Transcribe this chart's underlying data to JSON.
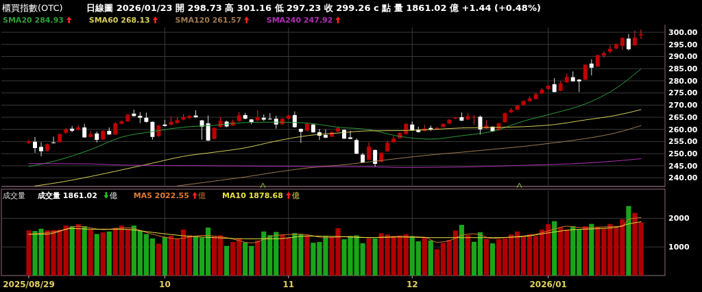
{
  "chart_data": [
    {
      "type": "candlestick",
      "title": "櫃買指數(OTC)",
      "subtitle": "日線圖 2026/01/23 開 298.73 高 301.16 低 297.23 收 299.26 c 點 量 1861.02 億 +1.44 (+0.48%)",
      "categories": [
        "2025/08/29",
        null,
        null,
        null,
        null,
        null,
        null,
        null,
        null,
        null,
        null,
        null,
        null,
        null,
        null,
        null,
        null,
        null,
        null,
        null,
        null,
        null,
        "10",
        null,
        null,
        null,
        null,
        null,
        null,
        null,
        null,
        null,
        null,
        null,
        null,
        null,
        null,
        null,
        null,
        null,
        null,
        null,
        "11",
        null,
        null,
        null,
        null,
        null,
        null,
        null,
        null,
        null,
        null,
        null,
        null,
        null,
        null,
        null,
        null,
        null,
        null,
        null,
        "12",
        null,
        null,
        null,
        null,
        null,
        null,
        null,
        null,
        null,
        null,
        null,
        null,
        null,
        null,
        null,
        null,
        null,
        null,
        null,
        null,
        null,
        "2026/01",
        null,
        null,
        null,
        null,
        null,
        null,
        null,
        null,
        null,
        null,
        null,
        null,
        null,
        null,
        null
      ],
      "ohlc": [
        [
          254.4,
          255.8,
          254.0,
          255.1
        ],
        [
          254.9,
          256.9,
          250.3,
          252.3
        ],
        [
          252.8,
          254.7,
          248.9,
          251.0
        ],
        [
          251.2,
          254.2,
          250.9,
          253.9
        ],
        [
          254.6,
          257.0,
          254.2,
          254.4
        ],
        [
          254.7,
          258.3,
          254.5,
          258.1
        ],
        [
          258.6,
          260.5,
          258.3,
          260.0
        ],
        [
          260.3,
          261.4,
          258.8,
          259.4
        ],
        [
          259.8,
          261.8,
          259.5,
          260.9
        ],
        [
          260.8,
          262.3,
          256.5,
          256.7
        ],
        [
          256.9,
          259.3,
          256.7,
          258.1
        ],
        [
          258.3,
          259.1,
          254.6,
          255.7
        ],
        [
          255.9,
          259.6,
          255.6,
          259.4
        ],
        [
          259.4,
          260.8,
          257.7,
          257.9
        ],
        [
          257.9,
          262.9,
          257.7,
          262.5
        ],
        [
          262.3,
          263.8,
          262.1,
          263.3
        ],
        [
          263.3,
          266.3,
          263.1,
          266.1
        ],
        [
          266.5,
          268.1,
          265.3,
          265.5
        ],
        [
          265.6,
          267.1,
          262.6,
          264.8
        ],
        [
          264.8,
          266.9,
          262.8,
          263.1
        ],
        [
          263.1,
          263.3,
          255.8,
          256.9
        ],
        [
          257.2,
          261.8,
          257.0,
          261.6
        ],
        [
          262.0,
          263.9,
          261.2,
          261.4
        ],
        [
          261.9,
          265.3,
          261.7,
          263.1
        ],
        [
          262.6,
          265.0,
          262.4,
          263.8
        ],
        [
          264.0,
          266.3,
          263.8,
          265.1
        ],
        [
          264.6,
          265.8,
          264.4,
          265.6
        ],
        [
          265.7,
          267.9,
          264.8,
          265.0
        ],
        [
          263.7,
          263.9,
          255.8,
          261.1
        ],
        [
          262.5,
          265.7,
          255.2,
          255.4
        ],
        [
          256.1,
          260.8,
          255.9,
          260.6
        ],
        [
          261.0,
          265.0,
          260.8,
          263.6
        ],
        [
          263.2,
          263.6,
          260.9,
          261.2
        ],
        [
          261.6,
          264.0,
          261.4,
          263.2
        ],
        [
          263.4,
          267.1,
          263.2,
          265.8
        ],
        [
          265.9,
          266.8,
          264.2,
          264.4
        ],
        [
          264.1,
          264.3,
          262.1,
          263.0
        ],
        [
          263.7,
          267.8,
          263.5,
          265.0
        ],
        [
          264.8,
          266.2,
          263.4,
          264.0
        ],
        [
          264.4,
          266.7,
          264.0,
          264.2
        ],
        [
          264.4,
          265.6,
          260.3,
          262.0
        ],
        [
          262.1,
          264.6,
          261.9,
          264.4
        ],
        [
          264.4,
          265.9,
          264.2,
          265.7
        ],
        [
          265.9,
          267.4,
          260.7,
          260.9
        ],
        [
          260.2,
          260.4,
          254.4,
          259.0
        ],
        [
          259.5,
          262.5,
          259.3,
          262.3
        ],
        [
          262.0,
          262.2,
          258.6,
          258.8
        ],
        [
          258.8,
          260.2,
          255.6,
          257.4
        ],
        [
          257.7,
          260.0,
          256.4,
          256.6
        ],
        [
          257.0,
          259.2,
          256.8,
          258.8
        ],
        [
          259.1,
          260.9,
          258.9,
          260.5
        ],
        [
          259.8,
          260.0,
          256.0,
          256.2
        ],
        [
          256.7,
          259.5,
          255.9,
          256.1
        ],
        [
          255.6,
          256.3,
          249.8,
          250.0
        ],
        [
          249.6,
          250.3,
          246.2,
          246.4
        ],
        [
          247.5,
          254.7,
          247.3,
          253.0
        ],
        [
          251.5,
          251.7,
          244.7,
          245.8
        ],
        [
          246.6,
          250.5,
          246.4,
          250.3
        ],
        [
          251.0,
          255.4,
          250.8,
          254.5
        ],
        [
          254.7,
          257.1,
          254.5,
          256.2
        ],
        [
          256.4,
          258.9,
          256.2,
          258.5
        ],
        [
          258.1,
          262.5,
          257.9,
          262.3
        ],
        [
          262.0,
          263.3,
          259.4,
          259.6
        ],
        [
          259.9,
          261.1,
          258.7,
          258.9
        ],
        [
          259.4,
          261.9,
          259.2,
          260.4
        ],
        [
          260.6,
          261.6,
          259.4,
          260.0
        ],
        [
          260.0,
          261.1,
          259.8,
          260.6
        ],
        [
          261.0,
          262.5,
          260.8,
          262.3
        ],
        [
          262.4,
          264.2,
          262.2,
          264.0
        ],
        [
          264.4,
          265.1,
          264.2,
          264.9
        ],
        [
          265.0,
          267.0,
          263.4,
          263.6
        ],
        [
          264.1,
          266.6,
          263.9,
          265.4
        ],
        [
          264.9,
          265.9,
          261.8,
          265.2
        ],
        [
          265.2,
          265.7,
          257.8,
          260.0
        ],
        [
          260.4,
          263.8,
          260.2,
          261.6
        ],
        [
          261.1,
          261.3,
          259.0,
          259.2
        ],
        [
          259.7,
          262.7,
          259.5,
          262.5
        ],
        [
          263.0,
          266.9,
          262.8,
          266.7
        ],
        [
          267.0,
          268.8,
          266.8,
          268.0
        ],
        [
          268.1,
          270.0,
          267.9,
          269.8
        ],
        [
          270.0,
          271.9,
          269.8,
          271.7
        ],
        [
          271.6,
          273.6,
          271.4,
          272.8
        ],
        [
          272.5,
          274.9,
          272.3,
          274.5
        ],
        [
          274.7,
          277.0,
          274.5,
          276.4
        ],
        [
          276.6,
          278.2,
          276.4,
          278.0
        ],
        [
          278.6,
          281.1,
          275.2,
          275.4
        ],
        [
          275.9,
          279.9,
          275.7,
          278.9
        ],
        [
          279.4,
          283.0,
          279.2,
          281.6
        ],
        [
          281.5,
          283.9,
          279.6,
          279.8
        ],
        [
          280.5,
          280.7,
          275.4,
          279.8
        ],
        [
          280.5,
          286.8,
          280.3,
          286.6
        ],
        [
          287.1,
          288.9,
          282.2,
          285.4
        ],
        [
          285.9,
          290.8,
          285.7,
          290.6
        ],
        [
          290.4,
          292.1,
          289.5,
          291.4
        ],
        [
          292.0,
          294.8,
          291.4,
          293.2
        ],
        [
          293.3,
          295.3,
          293.1,
          295.1
        ],
        [
          294.4,
          297.9,
          292.8,
          297.7
        ],
        [
          297.4,
          299.3,
          292.5,
          293.0
        ],
        [
          294.6,
          300.8,
          294.4,
          297.82
        ],
        [
          298.73,
          301.16,
          297.23,
          299.26
        ]
      ],
      "series": [
        {
          "type": "line",
          "name": "SMA20 284.93",
          "color": "#2f9c3a",
          "values": [
            244.7,
            null,
            null,
            null,
            null,
            247.5,
            null,
            null,
            null,
            null,
            251.7,
            null,
            null,
            null,
            null,
            256.8,
            null,
            null,
            null,
            null,
            259.1,
            null,
            null,
            null,
            null,
            260.9,
            null,
            null,
            null,
            null,
            261.7,
            null,
            null,
            null,
            null,
            262.8,
            null,
            null,
            null,
            null,
            263.0,
            null,
            null,
            null,
            null,
            262.6,
            null,
            null,
            null,
            null,
            260.9,
            null,
            null,
            null,
            null,
            259.9,
            null,
            null,
            null,
            null,
            257.1,
            null,
            null,
            null,
            null,
            256.0,
            null,
            null,
            null,
            null,
            257.4,
            null,
            null,
            null,
            null,
            259.2,
            null,
            null,
            null,
            null,
            263.4,
            null,
            null,
            null,
            null,
            266.7,
            null,
            null,
            null,
            null,
            270.5,
            null,
            null,
            null,
            null,
            277.0,
            null,
            null,
            null,
            284.93
          ]
        },
        {
          "type": "line",
          "name": "SMA60 268.13",
          "color": "#d8cf5a",
          "values": [
            null,
            236.7,
            null,
            null,
            null,
            238.2,
            null,
            null,
            null,
            null,
            240.6,
            null,
            null,
            null,
            null,
            243.3,
            null,
            null,
            null,
            null,
            246.1,
            null,
            null,
            null,
            null,
            248.9,
            null,
            null,
            null,
            null,
            250.6,
            null,
            null,
            null,
            null,
            252.4,
            null,
            null,
            null,
            null,
            255.2,
            null,
            null,
            null,
            null,
            257.4,
            null,
            null,
            null,
            null,
            258.5,
            null,
            null,
            null,
            null,
            259.4,
            null,
            null,
            null,
            null,
            259.5,
            null,
            null,
            null,
            null,
            259.9,
            null,
            null,
            null,
            null,
            260.6,
            null,
            null,
            null,
            null,
            260.8,
            null,
            null,
            null,
            null,
            261.1,
            null,
            null,
            null,
            null,
            262.0,
            null,
            null,
            null,
            null,
            263.9,
            null,
            null,
            null,
            null,
            265.8,
            null,
            null,
            null,
            268.13
          ]
        },
        {
          "type": "line",
          "name": "SMA120 261.57",
          "color": "#a07a52",
          "values": [
            null,
            null,
            null,
            null,
            null,
            null,
            null,
            null,
            null,
            null,
            null,
            null,
            null,
            null,
            null,
            null,
            null,
            null,
            null,
            null,
            null,
            null,
            null,
            null,
            236.7,
            null,
            null,
            null,
            null,
            null,
            238.7,
            null,
            null,
            null,
            null,
            240.4,
            null,
            null,
            null,
            null,
            242.4,
            null,
            null,
            null,
            null,
            244.1,
            null,
            null,
            null,
            null,
            245.2,
            null,
            null,
            null,
            null,
            246.6,
            null,
            null,
            null,
            null,
            248.1,
            null,
            null,
            null,
            null,
            249.5,
            null,
            null,
            null,
            null,
            250.6,
            null,
            null,
            null,
            null,
            251.8,
            null,
            null,
            null,
            null,
            253.0,
            null,
            null,
            null,
            null,
            254.5,
            null,
            null,
            null,
            null,
            256.2,
            null,
            null,
            null,
            null,
            258.6,
            null,
            null,
            null,
            261.57
          ]
        },
        {
          "type": "line",
          "name": "SMA240 247.92",
          "color": "#b02fb5",
          "values": [
            245.9,
            null,
            null,
            null,
            null,
            null,
            null,
            null,
            null,
            null,
            245.8,
            null,
            null,
            null,
            null,
            245.3,
            null,
            null,
            null,
            null,
            null,
            null,
            null,
            null,
            null,
            null,
            null,
            null,
            null,
            null,
            245.0,
            null,
            null,
            null,
            null,
            null,
            null,
            null,
            null,
            null,
            null,
            null,
            null,
            null,
            null,
            244.7,
            null,
            null,
            null,
            null,
            null,
            null,
            null,
            null,
            null,
            244.6,
            null,
            null,
            null,
            null,
            244.3,
            null,
            null,
            null,
            null,
            null,
            null,
            null,
            null,
            null,
            244.5,
            null,
            null,
            null,
            null,
            null,
            null,
            null,
            null,
            null,
            245.2,
            null,
            null,
            null,
            null,
            245.6,
            null,
            null,
            null,
            null,
            246.1,
            null,
            null,
            null,
            null,
            247.0,
            null,
            null,
            null,
            247.92
          ]
        }
      ],
      "ylim": [
        236.5,
        302
      ],
      "yticks": [
        {
          "value": 240,
          "label": "240.00"
        },
        {
          "value": 245,
          "label": "245.00"
        },
        {
          "value": 250,
          "label": "250.00"
        },
        {
          "value": 255,
          "label": "255.00"
        },
        {
          "value": 260,
          "label": "260.00"
        },
        {
          "value": 265,
          "label": "265.00"
        },
        {
          "value": 270,
          "label": "270.00"
        },
        {
          "value": 275,
          "label": "275.00"
        },
        {
          "value": 280,
          "label": "280.00"
        },
        {
          "value": 285,
          "label": "285.00"
        },
        {
          "value": 290,
          "label": "290.00"
        },
        {
          "value": 295,
          "label": "295.00"
        },
        {
          "value": 300,
          "label": "300.00"
        }
      ],
      "grid": true,
      "legend": "top left",
      "tick_labels": "y"
    },
    {
      "type": "bar",
      "title": "成交量",
      "categories": [
        "2025/08/29",
        null,
        null,
        null,
        null,
        null,
        null,
        null,
        null,
        null,
        null,
        null,
        null,
        null,
        null,
        null,
        null,
        null,
        null,
        null,
        null,
        null,
        "10",
        null,
        null,
        null,
        null,
        null,
        null,
        null,
        null,
        null,
        null,
        null,
        null,
        null,
        null,
        null,
        null,
        null,
        null,
        null,
        "11",
        null,
        null,
        null,
        null,
        null,
        null,
        null,
        null,
        null,
        null,
        null,
        null,
        null,
        null,
        null,
        null,
        null,
        null,
        null,
        "12",
        null,
        null,
        null,
        null,
        null,
        null,
        null,
        null,
        null,
        null,
        null,
        null,
        null,
        null,
        null,
        null,
        null,
        null,
        null,
        null,
        null,
        "2026/01",
        null,
        null,
        null,
        null,
        null,
        null,
        null,
        null,
        null,
        null,
        null,
        null,
        null,
        null,
        null
      ],
      "series": [
        {
          "type": "bar",
          "name": "成交量 1861.02 億",
          "values": [
            1580,
            1556,
            1636,
            1580,
            1588,
            1604,
            1748,
            1724,
            1796,
            1724,
            1604,
            1452,
            1508,
            1540,
            1668,
            1748,
            1620,
            1748,
            1556,
            1452,
            1300,
            1116,
            1348,
            1388,
            1284,
            1604,
            1404,
            1348,
            1324,
            1676,
            1364,
            1404,
            1036,
            1172,
            1300,
            1156,
            1036,
            1220,
            1540,
            1412,
            1524,
            1428,
            1324,
            1484,
            1444,
            1404,
            1148,
            1172,
            1364,
            1348,
            1652,
            1268,
            1380,
            1404,
            1130,
            1300,
            1300,
            1476,
            1436,
            1380,
            1404,
            1444,
            1380,
            1196,
            1340,
            1228,
            923,
            1140,
            1244,
            1572,
            1772,
            1412,
            1180,
            1516,
            1284,
            1124,
            1268,
            1300,
            1436,
            1540,
            1380,
            1444,
            1380,
            1604,
            1796,
            1900,
            1684,
            1604,
            1724,
            1604,
            1724,
            1804,
            1708,
            1644,
            1804,
            1668,
            1965,
            2429,
            2189,
            1861.02
          ],
          "colors": [
            "#b00000",
            "#1aa51a",
            "#1aa51a",
            "#b00000",
            "#b00000",
            "#b00000",
            "#b00000",
            "#1aa51a",
            "#b00000",
            "#1aa51a",
            "#b00000",
            "#1aa51a",
            "#b00000",
            "#1aa51a",
            "#b00000",
            "#b00000",
            "#b00000",
            "#1aa51a",
            "#1aa51a",
            "#1aa51a",
            "#1aa51a",
            "#b00000",
            "#1aa51a",
            "#b00000",
            "#b00000",
            "#b00000",
            "#b00000",
            "#1aa51a",
            "#1aa51a",
            "#1aa51a",
            "#b00000",
            "#b00000",
            "#1aa51a",
            "#b00000",
            "#b00000",
            "#1aa51a",
            "#1aa51a",
            "#b00000",
            "#1aa51a",
            "#1aa51a",
            "#1aa51a",
            "#b00000",
            "#b00000",
            "#1aa51a",
            "#1aa51a",
            "#b00000",
            "#1aa51a",
            "#1aa51a",
            "#1aa51a",
            "#b00000",
            "#b00000",
            "#1aa51a",
            "#1aa51a",
            "#1aa51a",
            "#1aa51a",
            "#b00000",
            "#1aa51a",
            "#b00000",
            "#b00000",
            "#b00000",
            "#b00000",
            "#b00000",
            "#1aa51a",
            "#1aa51a",
            "#b00000",
            "#1aa51a",
            "#b00000",
            "#b00000",
            "#b00000",
            "#b00000",
            "#1aa51a",
            "#b00000",
            "#1aa51a",
            "#1aa51a",
            "#b00000",
            "#1aa51a",
            "#b00000",
            "#b00000",
            "#b00000",
            "#b00000",
            "#b00000",
            "#b00000",
            "#b00000",
            "#b00000",
            "#b00000",
            "#1aa51a",
            "#b00000",
            "#b00000",
            "#1aa51a",
            "#1aa51a",
            "#b00000",
            "#1aa51a",
            "#b00000",
            "#b00000",
            "#b00000",
            "#b00000",
            "#b00000",
            "#1aa51a",
            "#b00000",
            "#b00000"
          ]
        },
        {
          "type": "line",
          "name": "MA5 2022.55 億",
          "color": "#e07a30",
          "values": [
            1444,
            null,
            null,
            null,
            null,
            1564,
            null,
            null,
            1724,
            null,
            null,
            null,
            1604,
            null,
            null,
            null,
            1668,
            null,
            null,
            null,
            1444,
            null,
            null,
            null,
            1284,
            null,
            null,
            null,
            1404,
            null,
            null,
            null,
            1324,
            null,
            null,
            null,
            1140,
            null,
            null,
            null,
            1404,
            null,
            null,
            null,
            1444,
            null,
            null,
            null,
            1324,
            null,
            null,
            null,
            1364,
            null,
            null,
            1324,
            null,
            null,
            null,
            null,
            1364,
            null,
            null,
            null,
            1340,
            null,
            1164,
            null,
            1220,
            null,
            1404,
            null,
            1460,
            null,
            null,
            1300,
            null,
            null,
            1348,
            null,
            null,
            null,
            1444,
            null,
            null,
            1620,
            null,
            1724,
            null,
            null,
            1660,
            null,
            null,
            1700,
            null,
            null,
            1724,
            1965,
            null,
            2022.55
          ]
        },
        {
          "type": "line",
          "name": "MA10 1878.68 億",
          "color": "#e8e040",
          "values": [
            1444,
            null,
            null,
            1450,
            null,
            null,
            null,
            1644,
            null,
            null,
            1620,
            null,
            null,
            null,
            null,
            1620,
            null,
            null,
            null,
            null,
            1508,
            null,
            null,
            null,
            null,
            1388,
            null,
            null,
            null,
            null,
            1324,
            null,
            null,
            null,
            null,
            1284,
            null,
            null,
            null,
            null,
            1284,
            null,
            null,
            null,
            null,
            1380,
            null,
            null,
            null,
            null,
            1364,
            null,
            null,
            null,
            null,
            1324,
            null,
            null,
            null,
            null,
            1348,
            null,
            null,
            null,
            null,
            1324,
            null,
            null,
            null,
            null,
            1324,
            null,
            null,
            null,
            null,
            1324,
            null,
            null,
            null,
            null,
            1364,
            null,
            null,
            null,
            null,
            1524,
            null,
            null,
            1604,
            null,
            1620,
            null,
            null,
            null,
            null,
            1684,
            null,
            1804,
            null,
            1878.68
          ]
        }
      ],
      "ylim": [
        0,
        2970
      ],
      "yticks": [
        1000,
        2000
      ],
      "grid": true,
      "legend": "top left"
    }
  ]
}
